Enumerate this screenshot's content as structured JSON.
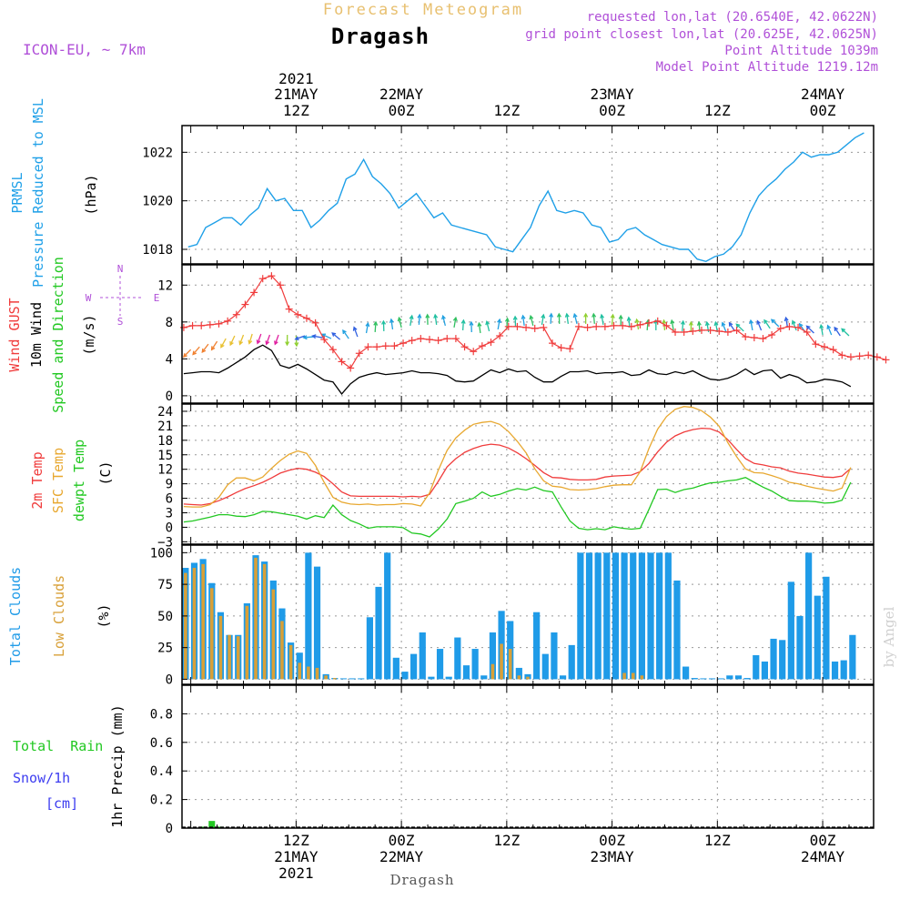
{
  "header": {
    "title": "Forecast Meteogram",
    "place": "Dragash",
    "model": "ICON-EU, ~ 7km",
    "requested": "requested lon,lat (20.6540E, 42.0622N)",
    "grid": "grid point closest lon,lat (20.625E, 42.0625N)",
    "point_alt": "Point Altitude 1039m",
    "model_alt": "Model Point Altitude 1219.12m",
    "footer_place": "Dragash",
    "watermark": "by Angel"
  },
  "time_axis": {
    "top_year": "2021",
    "top_labels": [
      {
        "h": 12,
        "lines": [
          "21MAY",
          "12Z"
        ]
      },
      {
        "h": 24,
        "lines": [
          "22MAY",
          "00Z"
        ]
      },
      {
        "h": 36,
        "lines": [
          "12Z"
        ]
      },
      {
        "h": 48,
        "lines": [
          "23MAY",
          "00Z"
        ]
      },
      {
        "h": 60,
        "lines": [
          "12Z"
        ]
      },
      {
        "h": 72,
        "lines": [
          "24MAY",
          "00Z"
        ]
      }
    ],
    "bottom_labels": [
      {
        "h": 12,
        "lines": [
          "12Z",
          "21MAY",
          "2021"
        ]
      },
      {
        "h": 24,
        "lines": [
          "00Z",
          "22MAY"
        ]
      },
      {
        "h": 36,
        "lines": [
          "12Z"
        ]
      },
      {
        "h": 48,
        "lines": [
          "00Z",
          "23MAY"
        ]
      },
      {
        "h": 60,
        "lines": [
          "12Z"
        ]
      },
      {
        "h": 72,
        "lines": [
          "00Z",
          "24MAY"
        ]
      }
    ]
  },
  "labels": {
    "p1": {
      "line1": "PRMSL",
      "line2": "Pressure Reduced to MSL",
      "unit": "(hPa)"
    },
    "p2": {
      "gust": "Wind GUST",
      "wind": "10m Wind",
      "dir": "Speed and Direction",
      "unit": "(m/s)",
      "compass": {
        "n": "N",
        "s": "S",
        "w": "W",
        "e": "E"
      }
    },
    "p3": {
      "t2m": "2m Temp",
      "sfc": "SFC Temp",
      "dew": "dewpt Temp",
      "unit": "(C)"
    },
    "p4": {
      "total": "Total Clouds",
      "low": "Low Clouds",
      "unit": "(%)"
    },
    "p5": {
      "rain": "Total  Rain",
      "snow": "Snow/1h",
      "cm": "[cm]",
      "precip": "1hr Precip (mm)"
    }
  },
  "colors": {
    "pressure": "#1fa0e8",
    "gust": "#f03c3c",
    "wind": "#000000",
    "t2m": "#f03c3c",
    "sfc": "#e8a830",
    "dew": "#22c822",
    "cloud_total": "#1f9be8",
    "cloud_low": "#d8a038",
    "rain": "#22c822",
    "snow": "#3c3cf0",
    "model_text": "#b050d8",
    "title_text": "#e8c070"
  },
  "chart_data": [
    {
      "type": "line",
      "name": "PRMSL",
      "x_unit": "hours from 2021-05-21 00Z (1h steps, -1 to 77)",
      "ylim": [
        1017.4,
        1023.1
      ],
      "yticks": [
        1018,
        1020,
        1022
      ],
      "series": [
        {
          "name": "PRMSL",
          "values": [
            1018.1,
            1018.2,
            1018.9,
            1019.1,
            1019.3,
            1019.3,
            1019.0,
            1019.4,
            1019.7,
            1020.5,
            1020.0,
            1020.1,
            1019.6,
            1019.6,
            1018.9,
            1019.2,
            1019.6,
            1019.9,
            1020.9,
            1021.1,
            1021.7,
            1021.0,
            1020.7,
            1020.3,
            1019.7,
            1020.0,
            1020.3,
            1019.8,
            1019.3,
            1019.5,
            1019.0,
            1018.9,
            1018.8,
            1018.7,
            1018.6,
            1018.1,
            1018.0,
            1017.9,
            1018.4,
            1018.9,
            1019.8,
            1020.4,
            1019.6,
            1019.5,
            1019.6,
            1019.5,
            1019.0,
            1018.9,
            1018.3,
            1018.4,
            1018.8,
            1018.9,
            1018.6,
            1018.4,
            1018.2,
            1018.1,
            1018.0,
            1018.0,
            1017.6,
            1017.5,
            1017.7,
            1017.8,
            1018.1,
            1018.6,
            1019.5,
            1020.2,
            1020.6,
            1020.9,
            1021.3,
            1021.6,
            1022.0,
            1021.8,
            1021.9,
            1021.9,
            1022.0,
            1022.3,
            1022.6,
            1022.8
          ]
        }
      ]
    },
    {
      "type": "line",
      "name": "Wind",
      "x_unit": "hours from 2021-05-21 00Z",
      "ylim": [
        -0.8,
        14.2
      ],
      "yticks": [
        0,
        4,
        8,
        12
      ],
      "series": [
        {
          "name": "Wind GUST",
          "values": [
            7.4,
            7.6,
            7.6,
            7.7,
            7.8,
            8.1,
            8.8,
            9.9,
            11.2,
            12.7,
            13.0,
            12.0,
            9.4,
            8.8,
            8.4,
            7.9,
            6.1,
            5.0,
            3.7,
            3.0,
            4.6,
            5.3,
            5.3,
            5.4,
            5.4,
            5.7,
            6.0,
            6.2,
            6.1,
            6.0,
            6.2,
            6.2,
            5.3,
            4.8,
            5.4,
            5.8,
            6.5,
            7.5,
            7.5,
            7.4,
            7.3,
            7.4,
            5.7,
            5.2,
            5.1,
            7.5,
            7.4,
            7.5,
            7.5,
            7.6,
            7.6,
            7.5,
            7.7,
            7.9,
            8.1,
            7.6,
            6.9,
            6.9,
            7.0,
            7.1,
            7.1,
            7.0,
            6.9,
            7.1,
            6.4,
            6.3,
            6.2,
            6.6,
            7.3,
            7.5,
            7.4,
            6.9,
            5.6,
            5.3,
            5.0,
            4.4,
            4.2,
            4.3,
            4.4,
            4.2,
            3.9
          ]
        },
        {
          "name": "10m Wind",
          "values": [
            2.4,
            2.5,
            2.6,
            2.6,
            2.5,
            3.0,
            3.6,
            4.2,
            5.0,
            5.5,
            4.9,
            3.3,
            3.0,
            3.4,
            2.9,
            2.3,
            1.7,
            1.5,
            0.2,
            1.3,
            2.0,
            2.3,
            2.5,
            2.3,
            2.4,
            2.5,
            2.7,
            2.5,
            2.5,
            2.4,
            2.2,
            1.6,
            1.5,
            1.6,
            2.2,
            2.8,
            2.5,
            2.9,
            2.6,
            2.7,
            2.0,
            1.5,
            1.5,
            2.1,
            2.6,
            2.6,
            2.7,
            2.4,
            2.5,
            2.5,
            2.6,
            2.2,
            2.3,
            2.8,
            2.4,
            2.3,
            2.6,
            2.4,
            2.7,
            2.2,
            1.8,
            1.7,
            1.9,
            2.3,
            2.9,
            2.3,
            2.7,
            2.8,
            1.9,
            2.3,
            2.0,
            1.4,
            1.5,
            1.8,
            1.7,
            1.5,
            1.0
          ]
        },
        {
          "name": "Wind arrows (direction/colour by speed)",
          "values": [
            5,
            5.3,
            5.6,
            5.9,
            6.2,
            6.5,
            6.6,
            6.7,
            6.7,
            6.6,
            6.6,
            6.6,
            6.5,
            6.5,
            6.4,
            6.3,
            6.2,
            6.1,
            6.2,
            6.4,
            6.8,
            6.9,
            7.0,
            7.2,
            7.4,
            7.6,
            7.7,
            7.7,
            7.7,
            7.6,
            7.4,
            7.1,
            6.9,
            6.8,
            7.0,
            7.2,
            7.3,
            7.5,
            7.6,
            7.6,
            7.7,
            7.8,
            7.8,
            7.8,
            7.8,
            7.8,
            7.8,
            7.7,
            7.7,
            7.6,
            7.4,
            7.2,
            7.1,
            7.1,
            7.1,
            7.1,
            7.0,
            6.9,
            6.9,
            6.9,
            6.9,
            6.9,
            7.0,
            7.0,
            7.1,
            7.1,
            7.3,
            7.5,
            7.4,
            7.1,
            6.9,
            6.8,
            6.6,
            6.6,
            6.5,
            6.5
          ]
        }
      ]
    },
    {
      "type": "line",
      "name": "Temperature",
      "x_unit": "hours from 2021-05-21 00Z",
      "ylim": [
        -3.5,
        25.5
      ],
      "yticks": [
        -3,
        0,
        3,
        6,
        9,
        12,
        15,
        18,
        21,
        24
      ],
      "series": [
        {
          "name": "2m Temp",
          "values": [
            4.8,
            4.7,
            4.6,
            4.9,
            5.5,
            6.3,
            7.2,
            8.0,
            8.6,
            9.3,
            10.2,
            11.2,
            11.8,
            12.2,
            12.0,
            11.4,
            10.5,
            9.0,
            7.3,
            6.5,
            6.4,
            6.4,
            6.4,
            6.4,
            6.4,
            6.3,
            6.4,
            6.3,
            6.8,
            9.5,
            12.5,
            14.2,
            15.5,
            16.3,
            16.9,
            17.2,
            17.0,
            16.4,
            15.4,
            14.2,
            12.8,
            11.3,
            10.3,
            10.2,
            9.9,
            9.8,
            9.8,
            9.9,
            10.4,
            10.6,
            10.7,
            10.8,
            11.5,
            13.2,
            15.6,
            17.6,
            18.9,
            19.7,
            20.2,
            20.5,
            20.4,
            19.7,
            18.1,
            16.1,
            14.2,
            13.2,
            12.9,
            12.5,
            12.3,
            11.6,
            11.2,
            11.0,
            10.7,
            10.4,
            10.3,
            10.6,
            12.2
          ]
        },
        {
          "name": "SFC Temp",
          "values": [
            4.3,
            4.2,
            4.2,
            4.7,
            6.2,
            8.8,
            10.2,
            10.2,
            9.6,
            10.4,
            12.2,
            13.8,
            15.1,
            15.8,
            15.3,
            12.8,
            9.3,
            6.2,
            5.2,
            4.8,
            4.7,
            4.8,
            4.6,
            4.7,
            4.7,
            4.9,
            4.8,
            4.4,
            7.1,
            11.8,
            15.9,
            18.5,
            20.1,
            21.3,
            21.7,
            21.9,
            21.3,
            19.8,
            17.8,
            15.4,
            12.1,
            9.6,
            8.5,
            8.3,
            7.8,
            7.7,
            7.8,
            8.0,
            8.4,
            8.7,
            8.8,
            8.8,
            11.5,
            16.3,
            20.3,
            22.9,
            24.4,
            25.0,
            24.8,
            24.1,
            22.8,
            20.9,
            17.5,
            14.6,
            12.1,
            11.3,
            11.2,
            10.7,
            10.1,
            9.3,
            9.0,
            8.5,
            8.1,
            7.8,
            7.5,
            8.1,
            12.4
          ]
        },
        {
          "name": "dewpt Temp",
          "values": [
            1.1,
            1.3,
            1.7,
            2.1,
            2.6,
            2.6,
            2.3,
            2.2,
            2.6,
            3.3,
            3.2,
            2.9,
            2.6,
            2.3,
            1.7,
            2.4,
            2.0,
            4.6,
            2.6,
            1.4,
            0.7,
            -0.2,
            0.1,
            0.1,
            0.1,
            -0.1,
            -1.2,
            -1.4,
            -2.0,
            -0.4,
            1.7,
            4.9,
            5.4,
            6.0,
            7.3,
            6.4,
            6.8,
            7.5,
            8.0,
            7.7,
            8.3,
            7.6,
            7.3,
            4.2,
            1.3,
            -0.2,
            -0.5,
            -0.3,
            -0.5,
            0.1,
            -0.2,
            -0.4,
            -0.2,
            3.7,
            7.8,
            7.9,
            7.2,
            7.8,
            8.1,
            8.7,
            9.2,
            9.3,
            9.6,
            9.8,
            10.3,
            9.3,
            8.3,
            7.5,
            6.4,
            5.5,
            5.4,
            5.4,
            5.3,
            5.0,
            5.1,
            5.6,
            9.3
          ]
        }
      ]
    },
    {
      "type": "bar",
      "name": "Clouds",
      "x_unit": "hours from 2021-05-21 00Z",
      "ylim": [
        -4,
        106
      ],
      "yticks": [
        0,
        25,
        50,
        75,
        100
      ],
      "series": [
        {
          "name": "Total Clouds",
          "values": [
            88,
            92,
            95,
            76,
            53,
            35,
            35,
            60,
            98,
            93,
            78,
            56,
            29,
            21,
            100,
            89,
            4,
            1,
            0,
            0,
            0,
            49,
            73,
            100,
            17,
            6,
            20,
            37,
            2,
            24,
            2,
            33,
            11,
            24,
            3,
            37,
            54,
            46,
            9,
            4,
            53,
            20,
            37,
            3,
            27,
            100,
            100,
            100,
            100,
            100,
            100,
            100,
            100,
            100,
            100,
            100,
            78,
            10,
            1,
            0,
            0,
            0,
            3,
            3,
            1,
            19,
            14,
            32,
            31,
            77,
            50,
            100,
            66,
            81,
            14,
            15,
            35
          ]
        },
        {
          "name": "Low Clouds",
          "values": [
            84,
            88,
            91,
            72,
            50,
            35,
            34,
            58,
            96,
            91,
            71,
            46,
            27,
            13,
            10,
            9,
            3,
            1,
            0,
            0,
            0,
            0,
            0,
            0,
            0,
            0,
            0,
            0,
            0,
            0,
            0,
            0,
            0,
            0,
            0,
            12,
            28,
            24,
            3,
            2,
            0,
            0,
            0,
            0,
            0,
            0,
            0,
            0,
            0,
            0,
            5,
            5,
            3,
            0,
            0,
            0,
            0,
            0,
            0,
            0,
            0,
            0,
            0,
            0,
            0,
            0,
            0,
            0,
            0,
            0,
            0,
            0,
            0,
            0,
            0,
            0,
            0
          ]
        }
      ]
    },
    {
      "type": "bar",
      "name": "Precipitation",
      "x_unit": "hours from 2021-05-21 00Z",
      "ylim": [
        0,
        1.0
      ],
      "yticks": [
        0,
        0.2,
        0.4,
        0.6,
        0.8
      ],
      "series": [
        {
          "name": "Total Rain",
          "points": [
            [
              1,
              0.01
            ],
            [
              2,
              0.05
            ],
            [
              3,
              0.01
            ]
          ]
        }
      ]
    }
  ]
}
